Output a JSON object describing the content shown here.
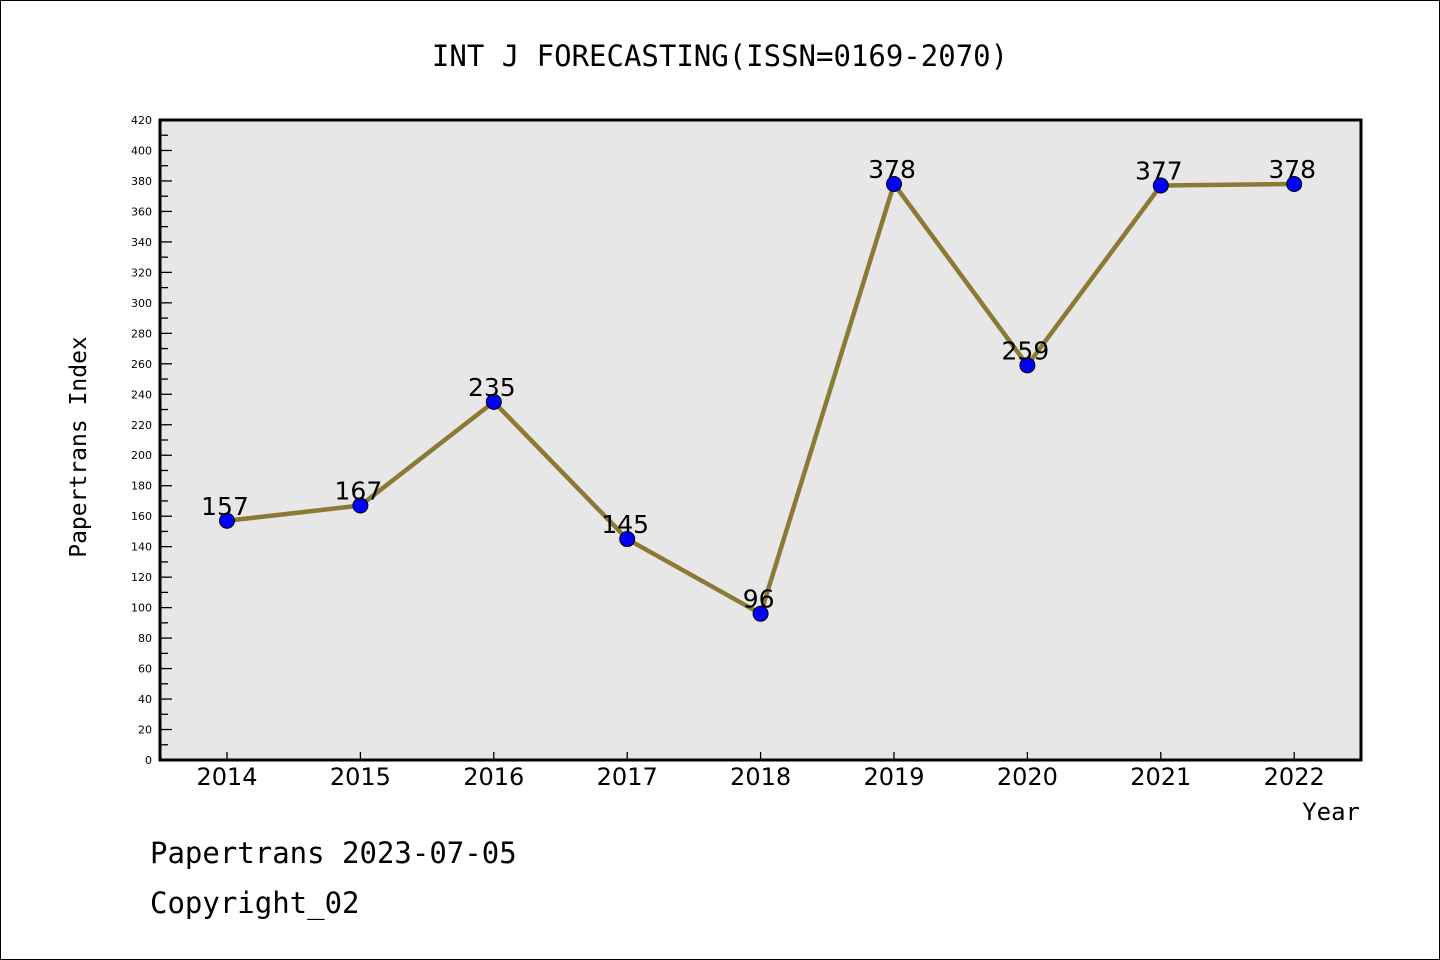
{
  "chart_data": {
    "type": "line",
    "title": "INT J FORECASTING(ISSN=0169-2070)",
    "xlabel": "Year",
    "ylabel": "Papertrans Index",
    "categories": [
      "2014",
      "2015",
      "2016",
      "2017",
      "2018",
      "2019",
      "2020",
      "2021",
      "2022"
    ],
    "series": [
      {
        "name": "Papertrans Index",
        "values": [
          157,
          167,
          235,
          145,
          96,
          378,
          259,
          377,
          378
        ]
      }
    ],
    "data_labels": [
      "157",
      "167",
      "235",
      "145",
      "96",
      "378",
      "259",
      "377",
      "378"
    ],
    "ylim": [
      0,
      420
    ],
    "yticks": [
      0,
      20,
      40,
      60,
      80,
      100,
      120,
      140,
      160,
      180,
      200,
      220,
      240,
      260,
      280,
      300,
      320,
      340,
      360,
      380,
      400,
      420
    ],
    "grid": false,
    "colors": {
      "line": "#8b7a35",
      "marker": "#0000ff",
      "plot_bg": "#e7e7e7"
    }
  },
  "footer": {
    "line1": "Papertrans 2023-07-05",
    "line2": "Copyright_02"
  }
}
